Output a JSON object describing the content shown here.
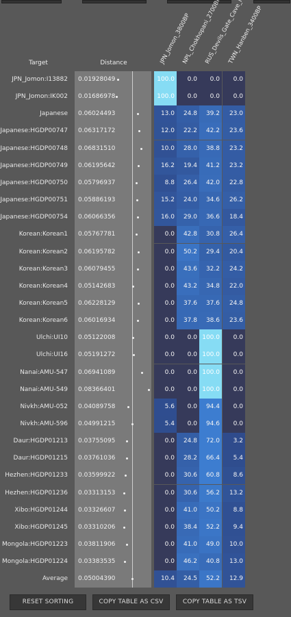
{
  "table": {
    "target_header": "Target",
    "distance_header": "Distance",
    "populations": [
      "JPN_Jomon_3800BP",
      "NPL_Chokhopani_2700BP",
      "RUS_Devils_Gate_Cave_N",
      "TWN_Hanben_3400BP"
    ],
    "rows": [
      {
        "label": "JPN_Jomon:I13882",
        "distance": "0.01928049",
        "values": [
          "100.0",
          "0.0",
          "0.0",
          "0.0"
        ]
      },
      {
        "label": "JPN_Jomon:IK002",
        "distance": "0.01686978",
        "values": [
          "100.0",
          "0.0",
          "0.0",
          "0.0"
        ]
      },
      {
        "label": "Japanese",
        "distance": "0.06024493",
        "values": [
          "13.0",
          "24.8",
          "39.2",
          "23.0"
        ]
      },
      {
        "label": "Japanese:HGDP00747",
        "distance": "0.06317172",
        "values": [
          "12.0",
          "22.2",
          "42.2",
          "23.6"
        ]
      },
      {
        "label": "Japanese:HGDP00748",
        "distance": "0.06831510",
        "values": [
          "10.0",
          "28.0",
          "38.8",
          "23.2"
        ]
      },
      {
        "label": "Japanese:HGDP00749",
        "distance": "0.06195642",
        "values": [
          "16.2",
          "19.4",
          "41.2",
          "23.2"
        ]
      },
      {
        "label": "Japanese:HGDP00750",
        "distance": "0.05796937",
        "values": [
          "8.8",
          "26.4",
          "42.0",
          "22.8"
        ]
      },
      {
        "label": "Japanese:HGDP00751",
        "distance": "0.05886193",
        "values": [
          "15.2",
          "24.0",
          "34.6",
          "26.2"
        ]
      },
      {
        "label": "Japanese:HGDP00754",
        "distance": "0.06066356",
        "values": [
          "16.0",
          "29.0",
          "36.6",
          "18.4"
        ]
      },
      {
        "label": "Korean:Korean1",
        "distance": "0.05767781",
        "values": [
          "0.0",
          "42.8",
          "30.8",
          "26.4"
        ]
      },
      {
        "label": "Korean:Korean2",
        "distance": "0.06195782",
        "values": [
          "0.0",
          "50.2",
          "29.4",
          "20.4"
        ]
      },
      {
        "label": "Korean:Korean3",
        "distance": "0.06079455",
        "values": [
          "0.0",
          "43.6",
          "32.2",
          "24.2"
        ]
      },
      {
        "label": "Korean:Korean4",
        "distance": "0.05142683",
        "values": [
          "0.0",
          "43.2",
          "34.8",
          "22.0"
        ]
      },
      {
        "label": "Korean:Korean5",
        "distance": "0.06228129",
        "values": [
          "0.0",
          "37.6",
          "37.6",
          "24.8"
        ]
      },
      {
        "label": "Korean:Korean6",
        "distance": "0.06016934",
        "values": [
          "0.0",
          "37.8",
          "38.6",
          "23.6"
        ]
      },
      {
        "label": "Ulchi:UI10",
        "distance": "0.05122008",
        "values": [
          "0.0",
          "0.0",
          "100.0",
          "0.0"
        ]
      },
      {
        "label": "Ulchi:UI16",
        "distance": "0.05191272",
        "values": [
          "0.0",
          "0.0",
          "100.0",
          "0.0"
        ]
      },
      {
        "label": "Nanai:AMU-547",
        "distance": "0.06941089",
        "values": [
          "0.0",
          "0.0",
          "100.0",
          "0.0"
        ]
      },
      {
        "label": "Nanai:AMU-549",
        "distance": "0.08366401",
        "values": [
          "0.0",
          "0.0",
          "100.0",
          "0.0"
        ]
      },
      {
        "label": "Nivkh:AMU-052",
        "distance": "0.04089758",
        "values": [
          "5.6",
          "0.0",
          "94.4",
          "0.0"
        ]
      },
      {
        "label": "Nivkh:AMU-596",
        "distance": "0.04991215",
        "values": [
          "5.4",
          "0.0",
          "94.6",
          "0.0"
        ]
      },
      {
        "label": "Daur:HGDP01213",
        "distance": "0.03755095",
        "values": [
          "0.0",
          "24.8",
          "72.0",
          "3.2"
        ]
      },
      {
        "label": "Daur:HGDP01215",
        "distance": "0.03761036",
        "values": [
          "0.0",
          "28.2",
          "66.4",
          "5.4"
        ]
      },
      {
        "label": "Hezhen:HGDP01233",
        "distance": "0.03599922",
        "values": [
          "0.0",
          "30.6",
          "60.8",
          "8.6"
        ]
      },
      {
        "label": "Hezhen:HGDP01236",
        "distance": "0.03313153",
        "values": [
          "0.0",
          "30.6",
          "56.2",
          "13.2"
        ]
      },
      {
        "label": "Xibo:HGDP01244",
        "distance": "0.03326607",
        "values": [
          "0.0",
          "41.0",
          "50.2",
          "8.8"
        ]
      },
      {
        "label": "Xibo:HGDP01245",
        "distance": "0.03310206",
        "values": [
          "0.0",
          "38.4",
          "52.2",
          "9.4"
        ]
      },
      {
        "label": "Mongola:HGDP01223",
        "distance": "0.03811906",
        "values": [
          "0.0",
          "41.0",
          "49.0",
          "10.0"
        ]
      },
      {
        "label": "Mongola:HGDP01224",
        "distance": "0.03383535",
        "values": [
          "0.0",
          "46.2",
          "40.8",
          "13.0"
        ]
      },
      {
        "label": "Average",
        "distance": "0.05004390",
        "values": [
          "10.4",
          "24.5",
          "52.2",
          "12.9"
        ]
      }
    ]
  },
  "buttons": {
    "reset_sorting": "RESET SORTING",
    "copy_csv": "COPY TABLE AS CSV",
    "copy_tsv": "COPY TABLE AS TSV"
  },
  "colors": {
    "background": "#585858",
    "distance_panel": "#7a7a7a",
    "cell_zero": "#363a5a",
    "cell_mid": "#3a6fc0",
    "cell_full": "#86dcf4"
  }
}
